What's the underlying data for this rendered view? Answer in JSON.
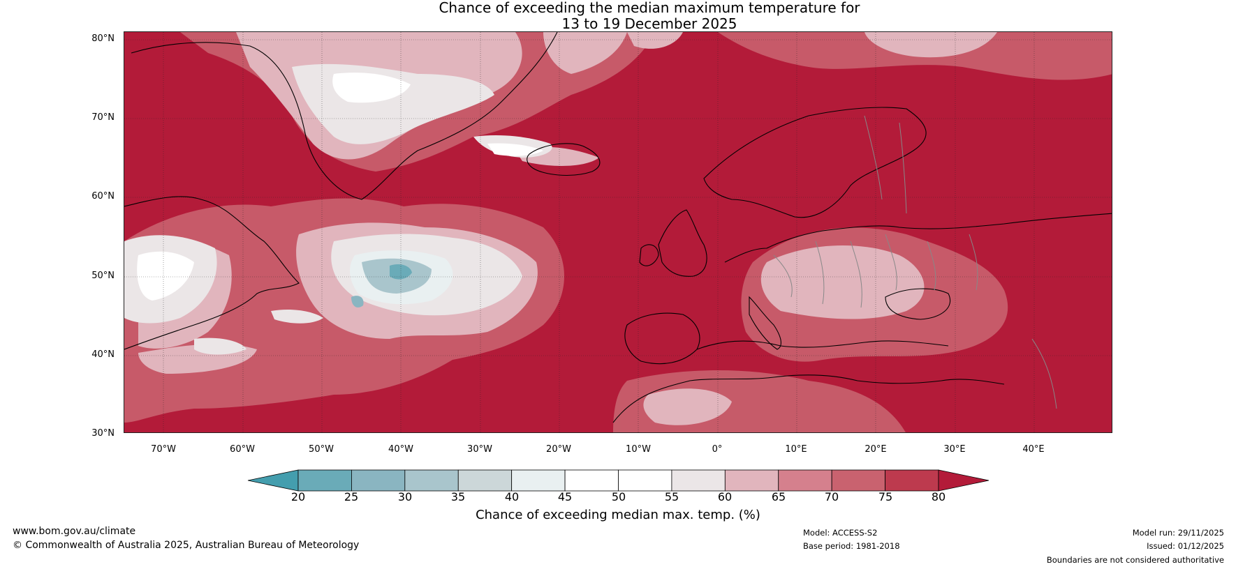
{
  "title_line1": "Chance of exceeding the median maximum temperature for",
  "title_line2": "13 to 19 December 2025",
  "latitude_labels": [
    "80°N",
    "70°N",
    "60°N",
    "50°N",
    "40°N",
    "30°N"
  ],
  "longitude_labels": [
    "70°W",
    "60°W",
    "50°W",
    "40°W",
    "30°W",
    "20°W",
    "10°W",
    "0°",
    "10°E",
    "20°E",
    "30°E",
    "40°E"
  ],
  "colorbar": {
    "ticks": [
      "20",
      "25",
      "30",
      "35",
      "40",
      "45",
      "50",
      "55",
      "60",
      "65",
      "70",
      "75",
      "80"
    ],
    "colors": [
      "#449eae",
      "#6aabb8",
      "#8ab5c1",
      "#a9c5cc",
      "#ccd7d9",
      "#e9f0f1",
      "#ffffff",
      "#ffffff",
      "#ebe6e7",
      "#e1b5bd",
      "#d5808d",
      "#c9626f",
      "#bd3a4e",
      "#b31b39"
    ],
    "label": "Chance of exceeding median max. temp. (%)"
  },
  "footer": {
    "website": "www.bom.gov.au/climate",
    "copyright": "© Commonwealth of Australia 2025, Australian Bureau of Meteorology",
    "model": "Model: ACCESS-S2",
    "base_period": "Base period: 1981-2018",
    "model_run": "Model run: 29/11/2025",
    "issued": "Issued: 01/12/2025",
    "boundaries_note": "Boundaries are not considered authoritative"
  }
}
